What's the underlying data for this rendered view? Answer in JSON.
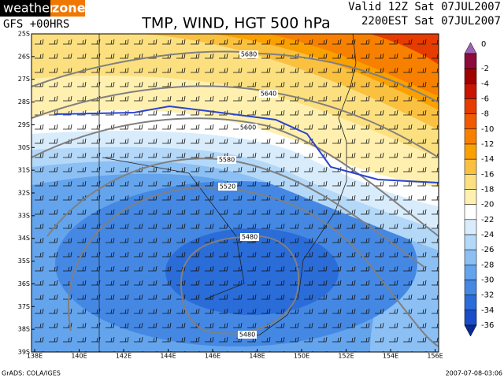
{
  "header": {
    "logo": {
      "left": "weather",
      "right": "zone"
    },
    "model": "GFS +00HRS",
    "title": "TMP, WIND, HGT 500 hPa",
    "valid": "Valid 12Z Sat 07JUL2007",
    "local": "2200EST Sat 07JUL2007"
  },
  "map": {
    "latitudes": [
      "25S",
      "26S",
      "27S",
      "28S",
      "29S",
      "30S",
      "31S",
      "32S",
      "33S",
      "34S",
      "35S",
      "36S",
      "37S",
      "38S",
      "39S"
    ],
    "longitudes": [
      "138E",
      "140E",
      "142E",
      "144E",
      "146E",
      "148E",
      "150E",
      "152E",
      "154E",
      "156E"
    ],
    "contours": [
      "5680",
      "5640",
      "5600",
      "5580",
      "5520",
      "5480",
      "5480"
    ]
  },
  "colorbar": {
    "levels": [
      "0",
      "-2",
      "-4",
      "-6",
      "-8",
      "-10",
      "-12",
      "-14",
      "-16",
      "-18",
      "-20",
      "-22",
      "-24",
      "-26",
      "-28",
      "-30",
      "-32",
      "-34",
      "-36"
    ],
    "colors": [
      "#a062b4",
      "#8c0a3c",
      "#a00000",
      "#c81400",
      "#e63c00",
      "#f05a00",
      "#f88000",
      "#faa000",
      "#fac040",
      "#fce080",
      "#fff0b0",
      "#ffffff",
      "#d8ecfc",
      "#b4d8f8",
      "#8cc0f4",
      "#64a4ec",
      "#4488e4",
      "#2a6cd8",
      "#1a4ec8",
      "#0a2c90"
    ]
  },
  "footer": {
    "left": "GrADS: COLA/IGES",
    "right": "2007-07-08-03:06"
  }
}
